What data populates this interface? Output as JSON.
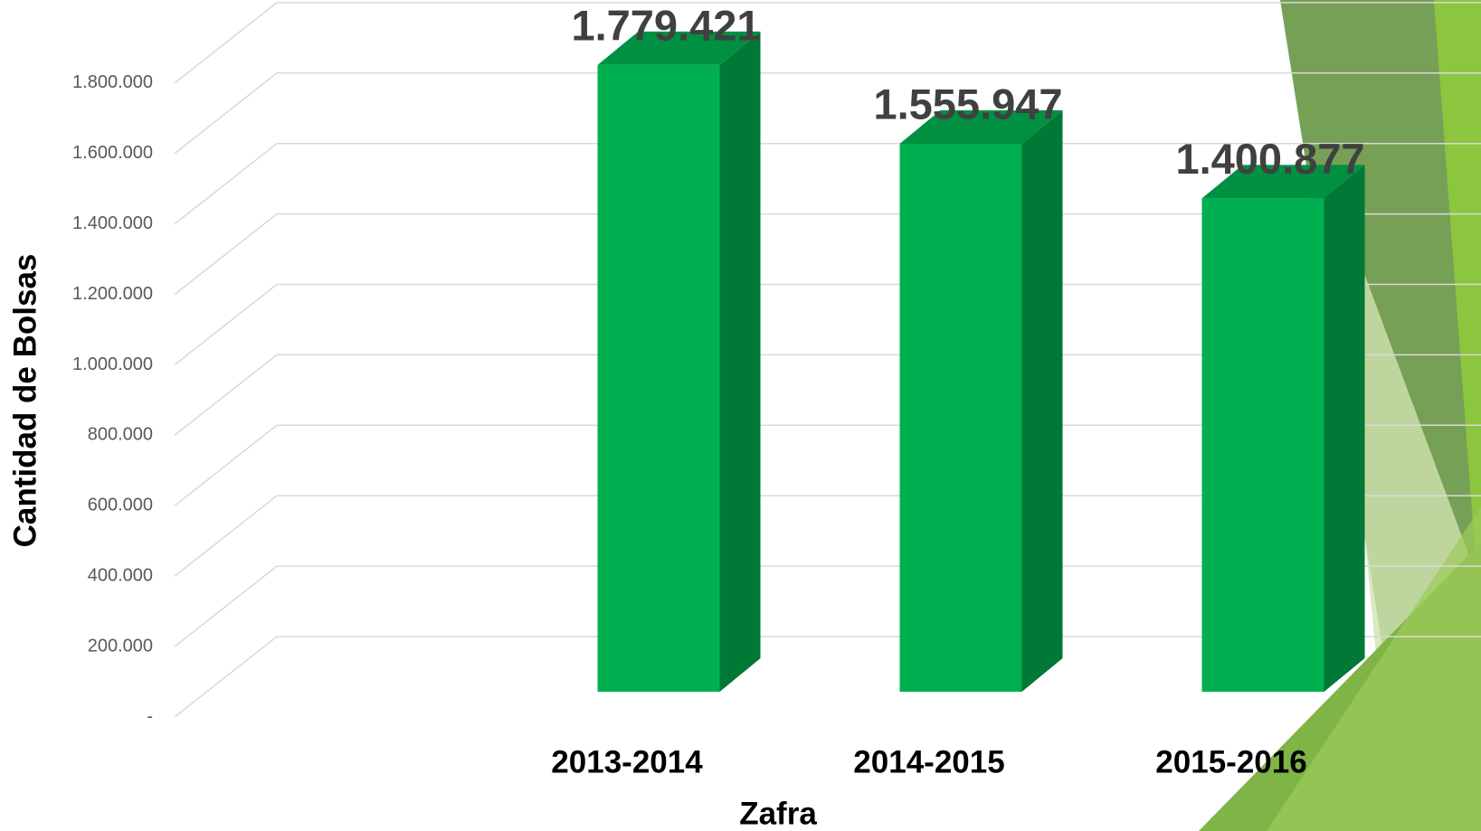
{
  "chart_data": {
    "type": "bar3d",
    "y_label": "Cantidad de Bolsas",
    "x_label": "Zafra",
    "categories": [
      "2013-2014",
      "2014-2015",
      "2015-2016"
    ],
    "values": [
      1779421,
      1555947,
      1400877
    ],
    "value_labels": [
      "1.779.421",
      "1.555.947",
      "1.400.877"
    ],
    "color": "#00b050",
    "ylim": [
      0,
      2000000
    ],
    "yticks": [
      {
        "value": 0,
        "label": "-"
      },
      {
        "value": 200000,
        "label": "200.000"
      },
      {
        "value": 400000,
        "label": "400.000"
      },
      {
        "value": 600000,
        "label": "600.000"
      },
      {
        "value": 800000,
        "label": "800.000"
      },
      {
        "value": 1000000,
        "label": "1.000.000"
      },
      {
        "value": 1200000,
        "label": "1.200.000"
      },
      {
        "value": 1400000,
        "label": "1.400.000"
      },
      {
        "value": 1600000,
        "label": "1.600.000"
      },
      {
        "value": 1800000,
        "label": "1.800.000"
      }
    ],
    "grid": true
  }
}
